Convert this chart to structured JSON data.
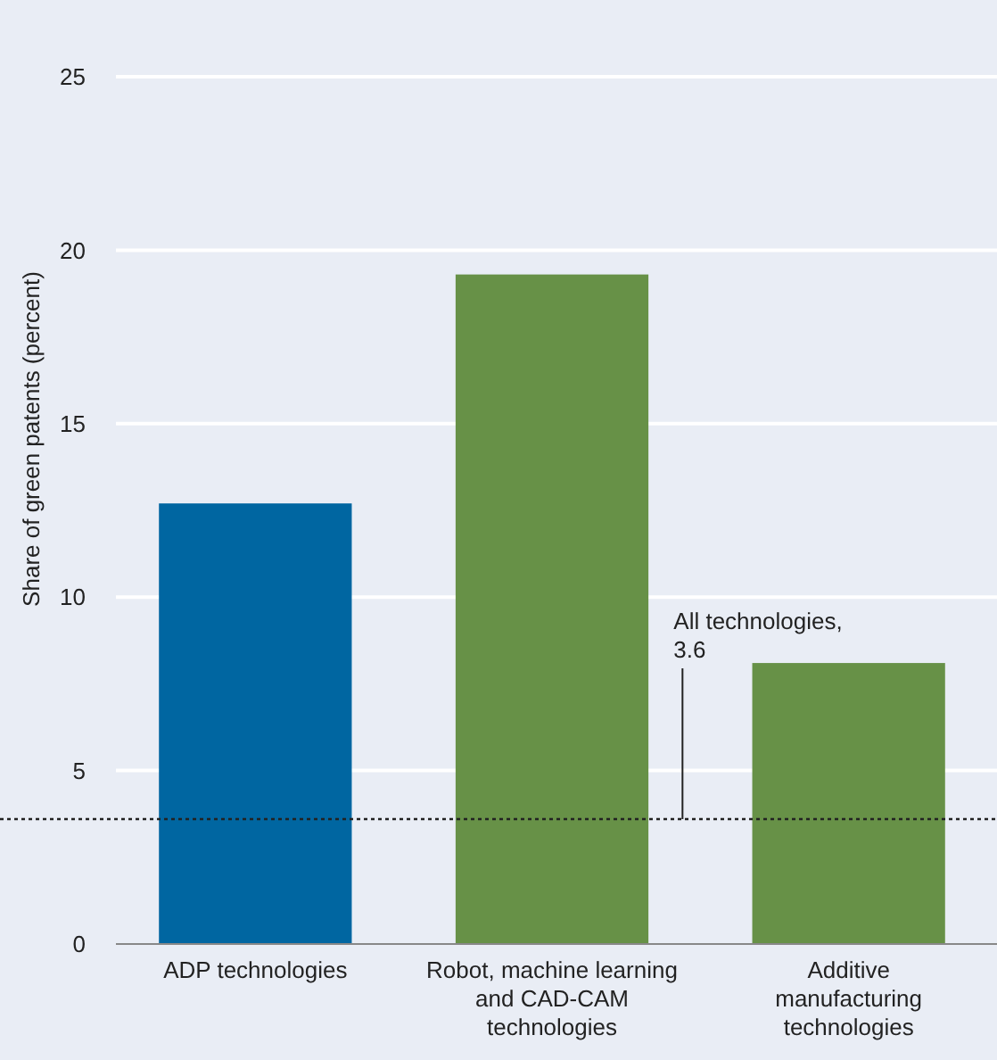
{
  "chart_data": {
    "type": "bar",
    "ylabel": "Share of green patents (percent)",
    "categories": [
      "ADP technologies",
      "Robot, machine learning and CAD-CAM technologies",
      "Additive manufacturing technologies"
    ],
    "values": [
      12.7,
      19.3,
      8.1
    ],
    "colors": [
      "#0066a1",
      "#679147",
      "#679147"
    ],
    "ylim": [
      0,
      25
    ],
    "yticks": [
      0,
      5,
      10,
      15,
      20,
      25
    ],
    "grid": "y",
    "ref_lines": [
      {
        "axis": "y",
        "value": 3.6,
        "label": "All technologies, 3.6",
        "line_style": "dotted",
        "color": "#222222"
      }
    ]
  }
}
